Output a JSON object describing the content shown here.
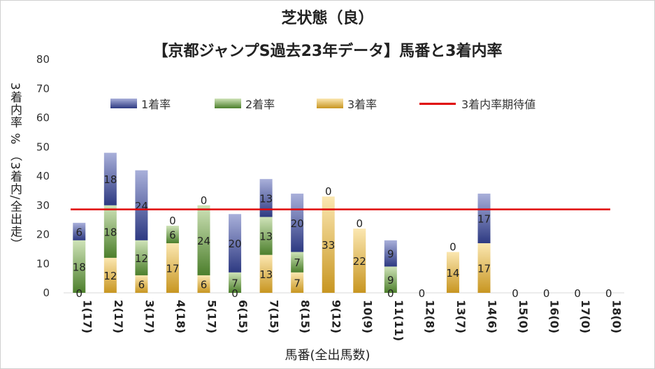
{
  "title": "芝状態（良）",
  "subtitle": "【京都ジャンプS過去23年データ】馬番と3着内率",
  "chart_data": {
    "type": "bar",
    "stacked": true,
    "title": "芝状態（良）",
    "subtitle": "【京都ジャンプS過去23年データ】馬番と3着内率",
    "xlabel": "馬番(全出馬数)",
    "ylabel": "3着内率 %  （3着内/全出走）",
    "ylim": [
      0,
      80
    ],
    "yticks": [
      0,
      10,
      20,
      30,
      40,
      50,
      60,
      70,
      80
    ],
    "categories": [
      "1(17)",
      "2(17)",
      "3(17)",
      "4(18)",
      "5(17)",
      "6(15)",
      "7(15)",
      "8(15)",
      "9(12)",
      "10(9)",
      "11(11)",
      "12(8)",
      "13(7)",
      "14(6)",
      "15(0)",
      "16(0)",
      "17(0)",
      "18(0)"
    ],
    "series": [
      {
        "name": "3着率",
        "values": [
          0,
          12,
          6,
          17,
          6,
          0,
          13,
          7,
          33,
          22,
          0,
          0,
          14,
          17,
          0,
          0,
          0,
          0
        ],
        "labels": [
          "0",
          "12",
          "6",
          "17",
          "6",
          "0",
          "13",
          "7",
          "33",
          "22",
          "0",
          "0",
          "14",
          "17",
          "0",
          "0",
          "0",
          "0"
        ]
      },
      {
        "name": "2着率",
        "values": [
          18,
          18,
          12,
          6,
          24,
          7,
          13,
          7,
          0,
          0,
          9,
          0,
          0,
          0,
          0,
          0,
          0,
          0
        ],
        "labels": [
          "18",
          "18",
          "12",
          "6",
          "24",
          "7",
          "13",
          "7",
          "",
          "",
          "9",
          "",
          "",
          "",
          "",
          "",
          "",
          ""
        ]
      },
      {
        "name": "1着率",
        "values": [
          6,
          18,
          24,
          0,
          0,
          20,
          13,
          20,
          0,
          0,
          9,
          0,
          0,
          17,
          0,
          0,
          0,
          0
        ],
        "labels": [
          "6",
          "18",
          "24",
          "0",
          "0",
          "20",
          "13",
          "20",
          "0",
          "0",
          "9",
          "",
          "0",
          "17",
          "",
          "",
          "",
          ""
        ]
      }
    ],
    "expected_line": {
      "name": "3着内率期待値",
      "value": 28.6
    },
    "colors": {
      "win": "#2e3a82",
      "win_light": "#a9b0da",
      "place2": "#4c7f2c",
      "place2_light": "#cfe3b8",
      "place3": "#c89621",
      "place3_light": "#fbe7b1",
      "expected": "#e00000"
    },
    "legend": [
      "1着率",
      "2着率",
      "3着率",
      "3着内率期待値"
    ]
  }
}
